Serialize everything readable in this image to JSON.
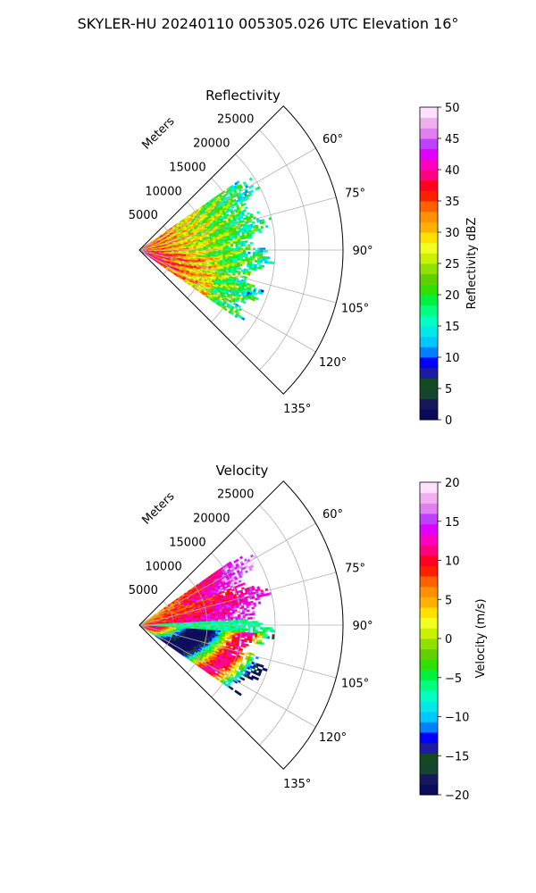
{
  "figure": {
    "suptitle": "SKYLER-HU  20240110  005305.026 UTC Elevation 16°"
  },
  "chart_data": [
    {
      "type": "polar-sector-heatmap",
      "title": "Reflectivity",
      "radial_label": "Meters",
      "radial_ticks": [
        5000,
        10000,
        15000,
        20000,
        25000
      ],
      "radial_tick_labels": [
        "5000",
        "10000",
        "15000",
        "20000",
        "25000"
      ],
      "rlim": [
        0,
        30000
      ],
      "data_range_max_m": 20000,
      "angle_ticks": [
        60,
        75,
        90,
        105,
        120,
        135
      ],
      "angle_tick_labels": [
        "60°",
        "75°",
        "90°",
        "105°",
        "120°",
        "135°"
      ],
      "theta_range_deg": [
        45,
        135
      ],
      "data_theta_range_deg": [
        55,
        125
      ],
      "grid": true,
      "colorbar": {
        "label": "Reflectivity dBZ",
        "range": [
          0,
          50
        ],
        "ticks": [
          0,
          5,
          10,
          15,
          20,
          25,
          30,
          35,
          40,
          45,
          50
        ],
        "tick_labels": [
          "0",
          "5",
          "10",
          "15",
          "20",
          "25",
          "30",
          "35",
          "40",
          "45",
          "50"
        ],
        "colors": [
          "#0b0b5a",
          "#17175e",
          "#16452f",
          "#134a24",
          "#1c1ca0",
          "#0000ff",
          "#0080ff",
          "#00c8ff",
          "#00e8e8",
          "#00ffc0",
          "#00ff80",
          "#00f040",
          "#30e000",
          "#60d000",
          "#90e000",
          "#c8f000",
          "#f0ff20",
          "#ffe000",
          "#ffb000",
          "#ff9000",
          "#ff6000",
          "#ff2000",
          "#ff0020",
          "#ff0080",
          "#ff00c0",
          "#e000ff",
          "#c040ff",
          "#e080f0",
          "#f0b0f0",
          "#ffe0ff"
        ]
      }
    },
    {
      "type": "polar-sector-heatmap",
      "title": "Velocity",
      "radial_label": "Meters",
      "radial_ticks": [
        5000,
        10000,
        15000,
        20000,
        25000
      ],
      "radial_tick_labels": [
        "5000",
        "10000",
        "15000",
        "20000",
        "25000"
      ],
      "rlim": [
        0,
        30000
      ],
      "data_range_max_m": 20000,
      "angle_ticks": [
        60,
        75,
        90,
        105,
        120,
        135
      ],
      "angle_tick_labels": [
        "60°",
        "75°",
        "90°",
        "105°",
        "120°",
        "135°"
      ],
      "theta_range_deg": [
        45,
        135
      ],
      "data_theta_range_deg": [
        55,
        125
      ],
      "grid": true,
      "colorbar": {
        "label": "Velocity (m/s)",
        "range": [
          -20,
          20
        ],
        "ticks": [
          -20,
          -15,
          -10,
          -5,
          0,
          5,
          10,
          15,
          20
        ],
        "tick_labels": [
          "−20",
          "−15",
          "−10",
          "−5",
          "0",
          "5",
          "10",
          "15",
          "20"
        ],
        "colors": [
          "#0b0b5a",
          "#17175e",
          "#16452f",
          "#134a24",
          "#1c1ca0",
          "#0000ff",
          "#0080ff",
          "#00c8ff",
          "#00e8e8",
          "#00ffc0",
          "#00ff80",
          "#00f040",
          "#30e000",
          "#60d000",
          "#90e000",
          "#c8f000",
          "#f0ff20",
          "#ffe000",
          "#ffb000",
          "#ff9000",
          "#ff6000",
          "#ff2000",
          "#ff0020",
          "#ff0080",
          "#ff00c0",
          "#e000ff",
          "#c040ff",
          "#e080f0",
          "#f0b0f0",
          "#ffe0ff"
        ]
      }
    }
  ]
}
